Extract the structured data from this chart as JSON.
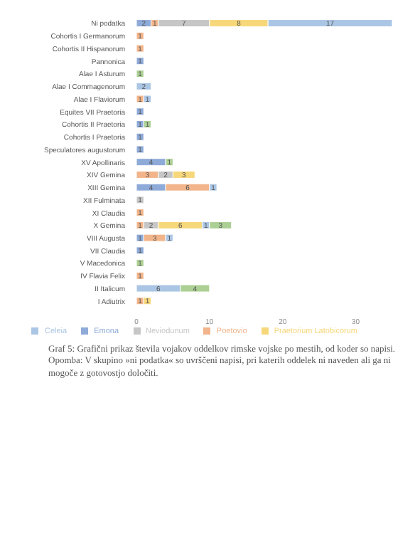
{
  "chart_data": {
    "type": "bar",
    "orientation": "horizontal",
    "stacked": true,
    "data_labels": true,
    "grid": false,
    "legend": "bottom",
    "categories": [
      "Ni podatka",
      "Cohortis I Germanorum",
      "Cohortis II Hispanorum",
      "Pannonica",
      "Alae I Asturum",
      "Alae I Commagenorum",
      "Alae I Flaviorum",
      "Equites VII Praetoria",
      "Cohortis II Praetoria",
      "Cohortis I Praetoria",
      "Speculatores augustorum",
      "XV Apollinaris",
      "XIV Gemina",
      "XIII Gemina",
      "XII Fulminata",
      "XI Claudia",
      "X Gemina",
      "VIII Augusta",
      "VII Claudia",
      "V Macedonica",
      "IV Flavia Felix",
      "II Italicum",
      "I Adiutrix"
    ],
    "xlim": [
      0,
      35
    ],
    "xticks": [
      0,
      10,
      20,
      30
    ],
    "series": [
      {
        "name": "Emona",
        "color": "#8eaad8",
        "values": [
          2,
          null,
          null,
          1,
          null,
          null,
          null,
          1,
          1,
          1,
          1,
          4,
          null,
          4,
          null,
          null,
          null,
          1,
          1,
          null,
          null,
          null,
          null
        ]
      },
      {
        "name": "Poetovio",
        "color": "#f2b48a",
        "values": [
          1,
          1,
          1,
          null,
          null,
          null,
          1,
          null,
          null,
          null,
          null,
          null,
          3,
          6,
          null,
          1,
          1,
          3,
          null,
          null,
          1,
          null,
          1
        ]
      },
      {
        "name": "Neviodunum",
        "color": "#c6c6c6",
        "values": [
          7,
          null,
          null,
          null,
          null,
          null,
          null,
          null,
          null,
          null,
          null,
          null,
          2,
          null,
          1,
          null,
          2,
          null,
          null,
          null,
          null,
          null,
          null
        ]
      },
      {
        "name": "Praetorium Latobicorum",
        "color": "#f6d77a",
        "values": [
          8,
          null,
          null,
          null,
          null,
          null,
          null,
          null,
          null,
          null,
          null,
          null,
          3,
          null,
          null,
          null,
          6,
          null,
          null,
          null,
          null,
          null,
          1
        ]
      },
      {
        "name": "Celeia",
        "color": "#abc6e4",
        "values": [
          17,
          null,
          null,
          null,
          null,
          2,
          1,
          null,
          null,
          null,
          null,
          null,
          null,
          1,
          null,
          null,
          1,
          1,
          null,
          null,
          null,
          6,
          null
        ]
      },
      {
        "color": "#acd094",
        "values": [
          null,
          null,
          null,
          null,
          1,
          null,
          null,
          null,
          1,
          null,
          null,
          1,
          null,
          null,
          null,
          null,
          3,
          null,
          null,
          1,
          null,
          4,
          null
        ]
      }
    ],
    "annotations": [
      "Graf 5: Grafični prikaz števila vojakov oddelkov rimske vojske po mestih, od koder so napisi.",
      "Opomba: V skupino »ni podatka« so uvrščeni napisi, pri katerih oddelek ni naveden ali ga ni mogoče z gotovostjo določiti."
    ]
  }
}
